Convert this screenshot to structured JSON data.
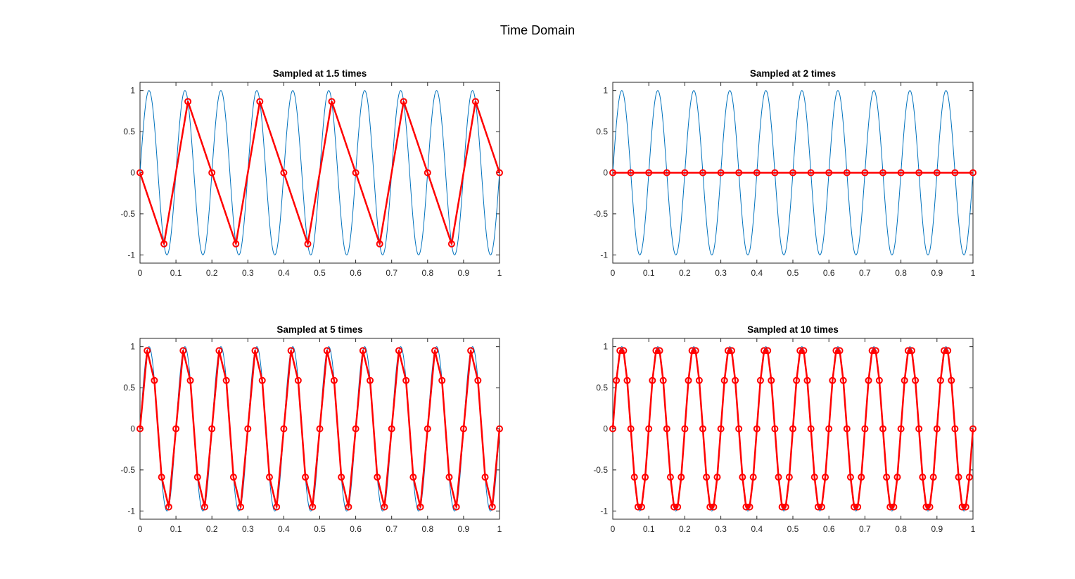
{
  "figure": {
    "title": "Time Domain",
    "signal_color": "#0072BD",
    "sample_color": "#FF0000"
  },
  "chart_data": [
    {
      "type": "line",
      "title": "Sampled at 1.5 times",
      "xlabel": "",
      "ylabel": "",
      "xlim": [
        0,
        1
      ],
      "ylim": [
        -1.1,
        1.1
      ],
      "xticks": [
        0,
        0.1,
        0.2,
        0.3,
        0.4,
        0.5,
        0.6,
        0.7,
        0.8,
        0.9,
        1
      ],
      "xtick_labels": [
        "0",
        "0.1",
        "0.2",
        "0.3",
        "0.4",
        "0.5",
        "0.6",
        "0.7",
        "0.8",
        "0.9",
        "1"
      ],
      "yticks": [
        1,
        0.5,
        0,
        -0.5,
        -1
      ],
      "ytick_labels": [
        "1",
        "0.5",
        "0",
        "-0.5",
        "-1"
      ],
      "grid": false,
      "series": [
        {
          "kind": "continuous-sine",
          "frequency_hz": 10,
          "amplitude": 1,
          "color": "#0072BD"
        },
        {
          "kind": "sampled",
          "marker": "o",
          "color": "#FF0000",
          "x": [
            0,
            0.0667,
            0.1333,
            0.2,
            0.2667,
            0.3333,
            0.4,
            0.4667,
            0.5333,
            0.6,
            0.6667,
            0.7333,
            0.8,
            0.8667,
            0.9333,
            1.0
          ],
          "y": [
            0,
            -0.866,
            0.866,
            0,
            -0.866,
            0.866,
            0,
            -0.866,
            0.866,
            0,
            -0.866,
            0.866,
            0,
            -0.866,
            0.866,
            0
          ]
        }
      ]
    },
    {
      "type": "line",
      "title": "Sampled at 2 times",
      "xlabel": "",
      "ylabel": "",
      "xlim": [
        0,
        1
      ],
      "ylim": [
        -1.1,
        1.1
      ],
      "xticks": [
        0,
        0.1,
        0.2,
        0.3,
        0.4,
        0.5,
        0.6,
        0.7,
        0.8,
        0.9,
        1
      ],
      "xtick_labels": [
        "0",
        "0.1",
        "0.2",
        "0.3",
        "0.4",
        "0.5",
        "0.6",
        "0.7",
        "0.8",
        "0.9",
        "1"
      ],
      "yticks": [
        1,
        0.5,
        0,
        -0.5,
        -1
      ],
      "ytick_labels": [
        "1",
        "0.5",
        "0",
        "-0.5",
        "-1"
      ],
      "grid": false,
      "series": [
        {
          "kind": "continuous-sine",
          "frequency_hz": 10,
          "amplitude": 1,
          "color": "#0072BD"
        },
        {
          "kind": "sampled",
          "marker": "o",
          "color": "#FF0000",
          "x": [
            0,
            0.05,
            0.1,
            0.15,
            0.2,
            0.25,
            0.3,
            0.35,
            0.4,
            0.45,
            0.5,
            0.55,
            0.6,
            0.65,
            0.7,
            0.75,
            0.8,
            0.85,
            0.9,
            0.95,
            1.0
          ],
          "y": [
            0,
            0,
            0,
            0,
            0,
            0,
            0,
            0,
            0,
            0,
            0,
            0,
            0,
            0,
            0,
            0,
            0,
            0,
            0,
            0,
            0
          ]
        }
      ]
    },
    {
      "type": "line",
      "title": "Sampled at 5 times",
      "xlabel": "",
      "ylabel": "",
      "xlim": [
        0,
        1
      ],
      "ylim": [
        -1.1,
        1.1
      ],
      "xticks": [
        0,
        0.1,
        0.2,
        0.3,
        0.4,
        0.5,
        0.6,
        0.7,
        0.8,
        0.9,
        1
      ],
      "xtick_labels": [
        "0",
        "0.1",
        "0.2",
        "0.3",
        "0.4",
        "0.5",
        "0.6",
        "0.7",
        "0.8",
        "0.9",
        "1"
      ],
      "yticks": [
        1,
        0.5,
        0,
        -0.5,
        -1
      ],
      "ytick_labels": [
        "1",
        "0.5",
        "0",
        "-0.5",
        "-1"
      ],
      "grid": false,
      "series": [
        {
          "kind": "continuous-sine",
          "frequency_hz": 10,
          "amplitude": 1,
          "color": "#0072BD"
        },
        {
          "kind": "sampled",
          "marker": "o",
          "color": "#FF0000",
          "x": [
            0,
            0.02,
            0.04,
            0.06,
            0.08,
            0.1,
            0.12,
            0.14,
            0.16,
            0.18,
            0.2,
            0.22,
            0.24,
            0.26,
            0.28,
            0.3,
            0.32,
            0.34,
            0.36,
            0.38,
            0.4,
            0.42,
            0.44,
            0.46,
            0.48,
            0.5,
            0.52,
            0.54,
            0.56,
            0.58,
            0.6,
            0.62,
            0.64,
            0.66,
            0.68,
            0.7,
            0.72,
            0.74,
            0.76,
            0.78,
            0.8,
            0.82,
            0.84,
            0.86,
            0.88,
            0.9,
            0.92,
            0.94,
            0.96,
            0.98,
            1.0
          ],
          "y": [
            0,
            0.951,
            0.588,
            -0.588,
            -0.951,
            0,
            0.951,
            0.588,
            -0.588,
            -0.951,
            0,
            0.951,
            0.588,
            -0.588,
            -0.951,
            0,
            0.951,
            0.588,
            -0.588,
            -0.951,
            0,
            0.951,
            0.588,
            -0.588,
            -0.951,
            0,
            0.951,
            0.588,
            -0.588,
            -0.951,
            0,
            0.951,
            0.588,
            -0.588,
            -0.951,
            0,
            0.951,
            0.588,
            -0.588,
            -0.951,
            0,
            0.951,
            0.588,
            -0.588,
            -0.951,
            0,
            0.951,
            0.588,
            -0.588,
            -0.951,
            0
          ]
        }
      ]
    },
    {
      "type": "line",
      "title": "Sampled at 10 times",
      "xlabel": "",
      "ylabel": "",
      "xlim": [
        0,
        1
      ],
      "ylim": [
        -1.1,
        1.1
      ],
      "xticks": [
        0,
        0.1,
        0.2,
        0.3,
        0.4,
        0.5,
        0.6,
        0.7,
        0.8,
        0.9,
        1
      ],
      "xtick_labels": [
        "0",
        "0.1",
        "0.2",
        "0.3",
        "0.4",
        "0.5",
        "0.6",
        "0.7",
        "0.8",
        "0.9",
        "1"
      ],
      "yticks": [
        1,
        0.5,
        0,
        -0.5,
        -1
      ],
      "ytick_labels": [
        "1",
        "0.5",
        "0",
        "-0.5",
        "-1"
      ],
      "grid": false,
      "series": [
        {
          "kind": "continuous-sine",
          "frequency_hz": 10,
          "amplitude": 1,
          "color": "#0072BD"
        },
        {
          "kind": "sampled",
          "marker": "o",
          "color": "#FF0000",
          "x": [
            0,
            0.01,
            0.02,
            0.03,
            0.04,
            0.05,
            0.06,
            0.07,
            0.08,
            0.09,
            0.1,
            0.11,
            0.12,
            0.13,
            0.14,
            0.15,
            0.16,
            0.17,
            0.18,
            0.19,
            0.2,
            0.21,
            0.22,
            0.23,
            0.24,
            0.25,
            0.26,
            0.27,
            0.28,
            0.29,
            0.3,
            0.31,
            0.32,
            0.33,
            0.34,
            0.35,
            0.36,
            0.37,
            0.38,
            0.39,
            0.4,
            0.41,
            0.42,
            0.43,
            0.44,
            0.45,
            0.46,
            0.47,
            0.48,
            0.49,
            0.5,
            0.51,
            0.52,
            0.53,
            0.54,
            0.55,
            0.56,
            0.57,
            0.58,
            0.59,
            0.6,
            0.61,
            0.62,
            0.63,
            0.64,
            0.65,
            0.66,
            0.67,
            0.68,
            0.69,
            0.7,
            0.71,
            0.72,
            0.73,
            0.74,
            0.75,
            0.76,
            0.77,
            0.78,
            0.79,
            0.8,
            0.81,
            0.82,
            0.83,
            0.84,
            0.85,
            0.86,
            0.87,
            0.88,
            0.89,
            0.9,
            0.91,
            0.92,
            0.93,
            0.94,
            0.95,
            0.96,
            0.97,
            0.98,
            0.99,
            1.0
          ],
          "y": [
            0,
            0.588,
            0.951,
            0.951,
            0.588,
            0,
            -0.588,
            -0.951,
            -0.951,
            -0.588,
            0,
            0.588,
            0.951,
            0.951,
            0.588,
            0,
            -0.588,
            -0.951,
            -0.951,
            -0.588,
            0,
            0.588,
            0.951,
            0.951,
            0.588,
            0,
            -0.588,
            -0.951,
            -0.951,
            -0.588,
            0,
            0.588,
            0.951,
            0.951,
            0.588,
            0,
            -0.588,
            -0.951,
            -0.951,
            -0.588,
            0,
            0.588,
            0.951,
            0.951,
            0.588,
            0,
            -0.588,
            -0.951,
            -0.951,
            -0.588,
            0,
            0.588,
            0.951,
            0.951,
            0.588,
            0,
            -0.588,
            -0.951,
            -0.951,
            -0.588,
            0,
            0.588,
            0.951,
            0.951,
            0.588,
            0,
            -0.588,
            -0.951,
            -0.951,
            -0.588,
            0,
            0.588,
            0.951,
            0.951,
            0.588,
            0,
            -0.588,
            -0.951,
            -0.951,
            -0.588,
            0,
            0.588,
            0.951,
            0.951,
            0.588,
            0,
            -0.588,
            -0.951,
            -0.951,
            -0.588,
            0,
            0.588,
            0.951,
            0.951,
            0.588,
            0,
            -0.588,
            -0.951,
            -0.951,
            -0.588,
            0
          ]
        }
      ]
    }
  ]
}
